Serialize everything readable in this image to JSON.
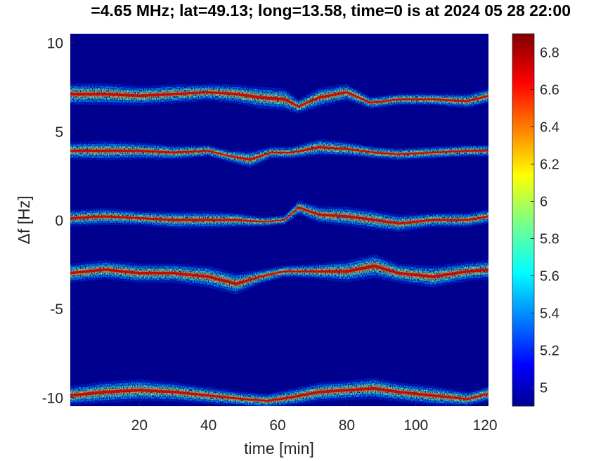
{
  "chart_data": {
    "type": "heatmap",
    "title": "=4.65 MHz;  lat=49.13; long=13.58, time=0 is at 2024 05 28 22:00",
    "xlabel": "time [min]",
    "ylabel": "Δf [Hz]",
    "xlim": [
      0,
      121
    ],
    "ylim": [
      -10.5,
      10.5
    ],
    "x_ticks": [
      20,
      40,
      60,
      80,
      100,
      120
    ],
    "y_ticks": [
      -10,
      -5,
      0,
      5,
      10
    ],
    "colorbar": {
      "range": [
        4.9,
        6.9
      ],
      "ticks": [
        5,
        5.2,
        5.4,
        5.6,
        5.8,
        6,
        6.2,
        6.4,
        6.6,
        6.8
      ],
      "colormap": "jet"
    },
    "background_color": "#00008f",
    "grid": false,
    "traces": [
      {
        "name_hint": "band near 7 Hz",
        "x": [
          0,
          10,
          20,
          30,
          40,
          48,
          55,
          62,
          66,
          72,
          80,
          87,
          95,
          105,
          115,
          121
        ],
        "y": [
          7.1,
          7.1,
          7.0,
          7.1,
          7.2,
          7.1,
          6.9,
          6.8,
          6.4,
          6.9,
          7.2,
          6.6,
          6.8,
          6.8,
          6.7,
          7.0
        ],
        "width": [
          0.9,
          0.9,
          0.8,
          0.8,
          0.7,
          0.8,
          0.9,
          0.9,
          0.6,
          0.8,
          0.7,
          0.5,
          0.5,
          0.5,
          0.6,
          0.6
        ]
      },
      {
        "name_hint": "band near 4 Hz",
        "x": [
          0,
          10,
          20,
          30,
          40,
          46,
          52,
          58,
          64,
          72,
          80,
          88,
          95,
          105,
          115,
          121
        ],
        "y": [
          3.9,
          3.9,
          3.9,
          3.8,
          3.9,
          3.6,
          3.4,
          3.8,
          3.8,
          4.1,
          4.0,
          3.8,
          3.7,
          3.8,
          3.9,
          3.9
        ],
        "width": [
          0.7,
          0.8,
          0.7,
          0.6,
          0.5,
          0.5,
          0.7,
          0.5,
          0.5,
          0.7,
          0.6,
          0.5,
          0.5,
          0.5,
          0.5,
          0.5
        ]
      },
      {
        "name_hint": "band near 0 Hz",
        "x": [
          0,
          10,
          20,
          30,
          40,
          48,
          56,
          62,
          66,
          72,
          80,
          88,
          95,
          105,
          115,
          121
        ],
        "y": [
          0.1,
          0.2,
          0.1,
          0.0,
          0.0,
          0.0,
          -0.1,
          0.0,
          0.7,
          0.3,
          0.2,
          0.0,
          -0.2,
          0.0,
          0.0,
          0.2
        ],
        "width": [
          0.7,
          0.7,
          0.6,
          0.7,
          0.7,
          0.6,
          0.4,
          0.4,
          0.6,
          0.7,
          0.8,
          0.8,
          0.7,
          0.6,
          0.6,
          0.6
        ]
      },
      {
        "name_hint": "band near -3 Hz",
        "x": [
          0,
          10,
          20,
          30,
          40,
          48,
          55,
          62,
          70,
          80,
          88,
          95,
          105,
          115,
          121
        ],
        "y": [
          -3.0,
          -2.8,
          -3.0,
          -3.0,
          -3.2,
          -3.6,
          -3.2,
          -2.9,
          -2.9,
          -2.9,
          -2.6,
          -3.0,
          -3.2,
          -2.9,
          -2.8
        ],
        "width": [
          0.8,
          0.8,
          0.8,
          0.8,
          0.9,
          0.9,
          0.6,
          0.5,
          0.6,
          0.9,
          1.0,
          0.8,
          0.9,
          0.8,
          0.8
        ]
      },
      {
        "name_hint": "band near -10 Hz",
        "x": [
          0,
          10,
          20,
          30,
          40,
          50,
          57,
          64,
          72,
          80,
          88,
          95,
          105,
          115,
          121
        ],
        "y": [
          -9.9,
          -9.7,
          -9.6,
          -9.7,
          -9.9,
          -10.1,
          -10.2,
          -10.0,
          -9.7,
          -9.6,
          -9.5,
          -9.7,
          -9.9,
          -10.1,
          -9.8
        ],
        "width": [
          0.8,
          0.9,
          0.9,
          0.8,
          0.7,
          0.6,
          0.6,
          0.7,
          0.8,
          0.8,
          0.9,
          0.8,
          0.8,
          0.6,
          0.6
        ]
      }
    ]
  }
}
